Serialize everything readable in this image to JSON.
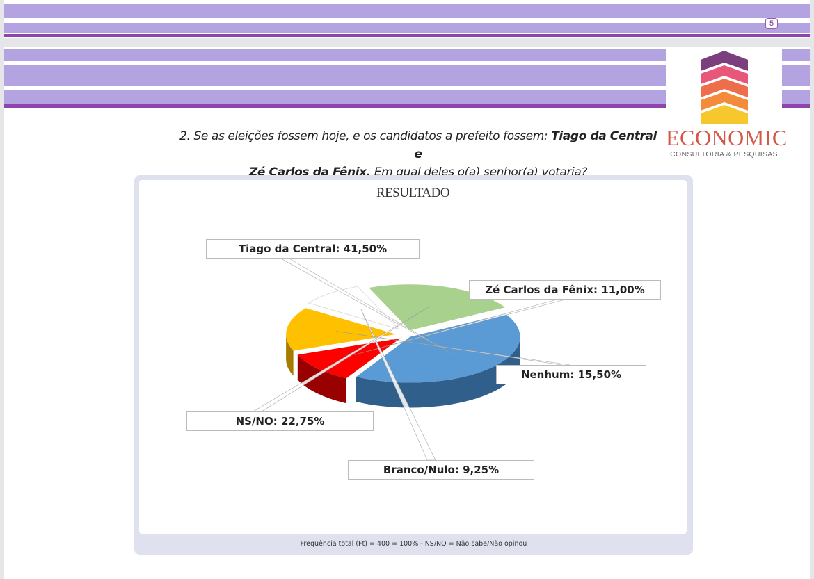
{
  "page_number": "5",
  "logo": {
    "word": "ECONOMIC",
    "subtitle": "CONSULTORIA & PESQUISAS"
  },
  "question": {
    "prefix": "2. Se as eleições fossem hoje, e os candidatos a prefeito fossem: ",
    "bold1": "Tiago da Central e",
    "bold2": "Zé Carlos da Fênix.",
    "suffix": " Em qual deles o(a) senhor(a) votaria?"
  },
  "chart_data": {
    "type": "pie",
    "title": "RESULTADO",
    "slices": [
      {
        "name": "Tiago da Central",
        "value": 41.5,
        "label": "Tiago da Central: 41,50%",
        "color": "#5b9bd5"
      },
      {
        "name": "Zé Carlos da Fênix",
        "value": 11.0,
        "label": "Zé Carlos da Fênix: 11,00%",
        "color": "#ff0000"
      },
      {
        "name": "Nenhum",
        "value": 15.5,
        "label": "Nenhum: 15,50%",
        "color": "#ffc000"
      },
      {
        "name": "Branco/Nulo",
        "value": 9.25,
        "label": "Branco/Nulo: 9,25%",
        "color": "#ffffff"
      },
      {
        "name": "NS/NO",
        "value": 22.75,
        "label": "NS/NO: 22,75%",
        "color": "#a9d18e"
      }
    ],
    "style": "3D exploded"
  },
  "footnote": "Frequência total (Ft) = 400 = 100% - NS/NO = Não sabe/Não opinou"
}
